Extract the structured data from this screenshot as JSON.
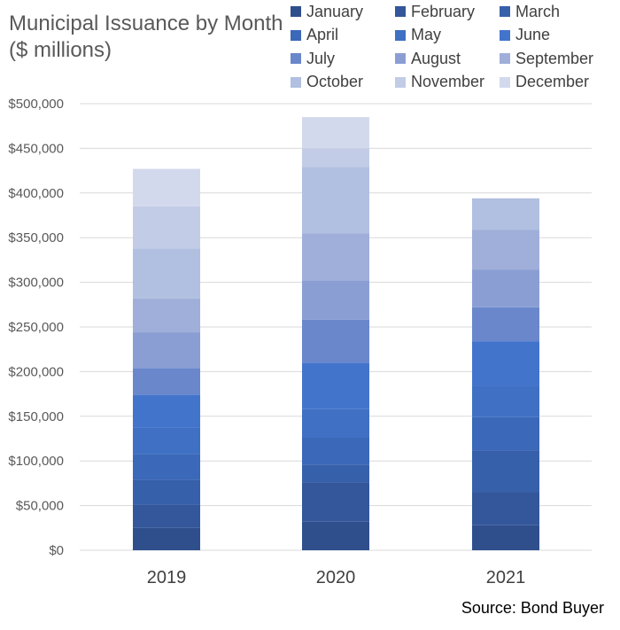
{
  "chart_data": {
    "type": "bar",
    "stacked": true,
    "title_line1": "Municipal Issuance by Month",
    "title_line2": "($ millions)",
    "categories": [
      "2019",
      "2020",
      "2021"
    ],
    "ylim": [
      0,
      500000
    ],
    "yticks": [
      "$0",
      "$50,000",
      "$100,000",
      "$150,000",
      "$200,000",
      "$250,000",
      "$300,000",
      "$350,000",
      "$400,000",
      "$450,000",
      "$500,000"
    ],
    "grid": true,
    "legend_position": "top-right",
    "series": [
      {
        "name": "January",
        "color": "#2f4f8c",
        "values": [
          25000,
          32000,
          28000
        ]
      },
      {
        "name": "February",
        "color": "#33579a",
        "values": [
          26000,
          44000,
          37000
        ]
      },
      {
        "name": "March",
        "color": "#3760aa",
        "values": [
          28000,
          20000,
          47000
        ]
      },
      {
        "name": "April",
        "color": "#3b68b8",
        "values": [
          29000,
          30000,
          37000
        ]
      },
      {
        "name": "May",
        "color": "#3f70c4",
        "values": [
          29000,
          32000,
          35000
        ]
      },
      {
        "name": "June",
        "color": "#4374cc",
        "values": [
          37000,
          52000,
          50000
        ]
      },
      {
        "name": "July",
        "color": "#6a87cb",
        "values": [
          30000,
          48000,
          38000
        ]
      },
      {
        "name": "August",
        "color": "#8b9ed4",
        "values": [
          40000,
          44000,
          42000
        ]
      },
      {
        "name": "September",
        "color": "#9fafd9",
        "values": [
          38000,
          53000,
          45000
        ]
      },
      {
        "name": "October",
        "color": "#b1bfe0",
        "values": [
          56000,
          74000,
          35000
        ]
      },
      {
        "name": "November",
        "color": "#c2cce6",
        "values": [
          47000,
          21000,
          0
        ]
      },
      {
        "name": "December",
        "color": "#d3d9ec",
        "values": [
          42000,
          35000,
          0
        ]
      }
    ],
    "source": "Source: Bond Buyer"
  }
}
